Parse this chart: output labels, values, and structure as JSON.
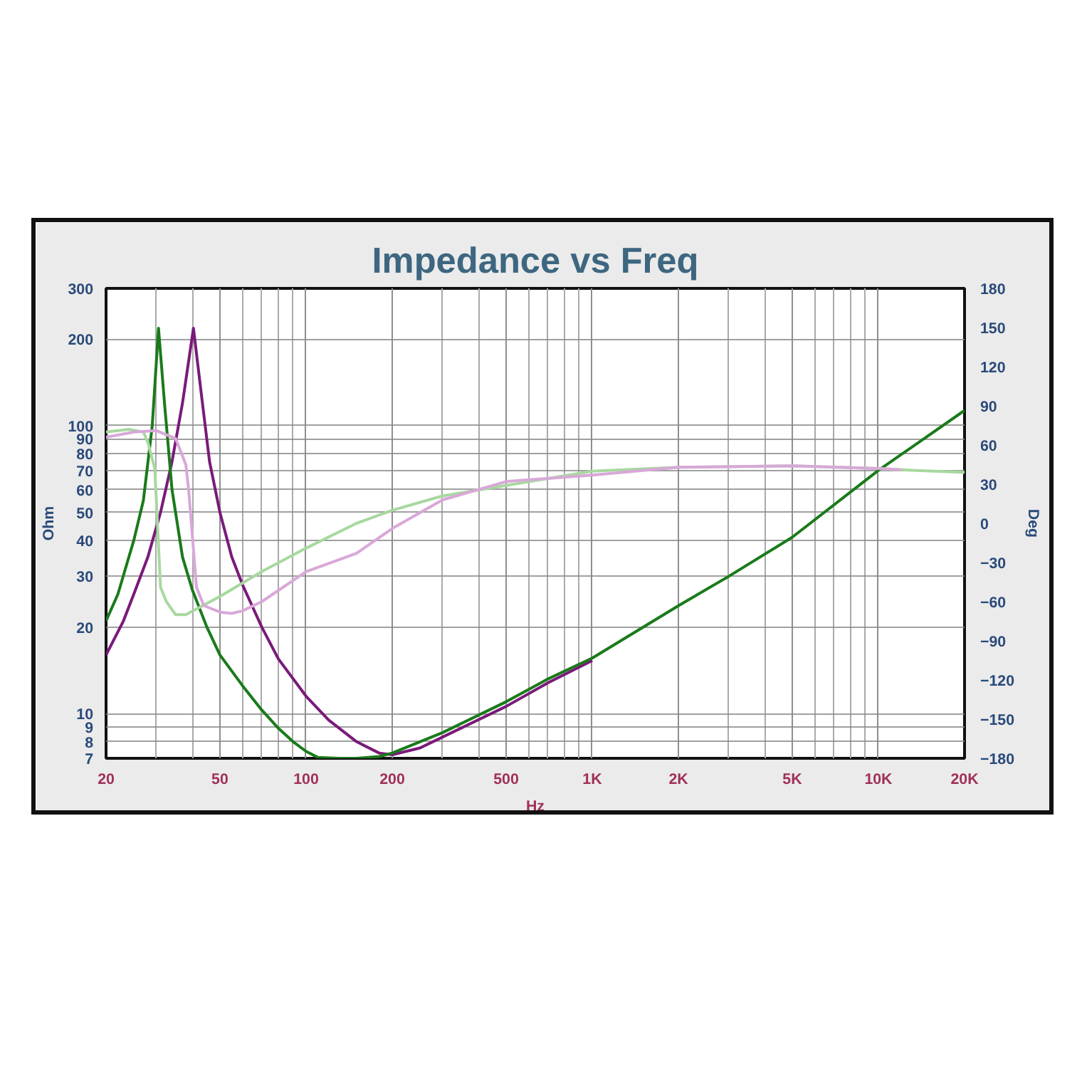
{
  "chart_data": {
    "type": "line",
    "title": "Impedance vs Freq",
    "xlabel": "Hz",
    "ylabel": "Ohm",
    "y2label": "Deg",
    "log": "xy",
    "grid": true,
    "marker": "none",
    "line_style": "solid",
    "xlim": [
      20,
      20000
    ],
    "xticks": [
      20,
      50,
      100,
      200,
      500,
      {
        "value": 1000,
        "label": "1K"
      },
      {
        "value": 2000,
        "label": "2K"
      },
      {
        "value": 5000,
        "label": "5K"
      },
      {
        "value": 10000,
        "label": "10K"
      },
      {
        "value": 20000,
        "label": "20K"
      }
    ],
    "ylim": [
      7,
      300
    ],
    "yticks": [
      7,
      8,
      9,
      10,
      20,
      30,
      40,
      50,
      60,
      70,
      80,
      90,
      100,
      200,
      300
    ],
    "y2lim": [
      -180,
      180
    ],
    "y2ticks": [
      -180,
      -150,
      -120,
      -90,
      -60,
      -30,
      0,
      30,
      60,
      90,
      120,
      150,
      180
    ],
    "series": [
      {
        "color": "#7a1a7a",
        "x": [
          20,
          23,
          25,
          28,
          31,
          34,
          37,
          40.4,
          43,
          46,
          50,
          55,
          60,
          70,
          80,
          100,
          120,
          150,
          180,
          200,
          250,
          300,
          500,
          700,
          1000
        ],
        "values": [
          16,
          21,
          26,
          35,
          50,
          75,
          120,
          218,
          130,
          75,
          50,
          35,
          28,
          20,
          15.5,
          11.5,
          9.5,
          8,
          7.3,
          7.2,
          7.6,
          8.3,
          10.6,
          12.8,
          15.3
        ]
      },
      {
        "color": "#1a7a1a",
        "x": [
          20,
          22,
          25,
          27,
          29,
          30.5,
          32,
          34,
          37,
          40,
          45,
          50,
          60,
          70,
          80,
          90,
          100,
          110,
          130,
          150,
          180,
          200,
          300,
          500,
          700,
          1000,
          2000,
          3000,
          5000,
          10000,
          20000
        ],
        "values": [
          21,
          26,
          40,
          55,
          100,
          218,
          120,
          60,
          35,
          27,
          20,
          16,
          12.5,
          10.3,
          8.9,
          8,
          7.4,
          7.05,
          7,
          7,
          7.1,
          7.3,
          8.6,
          11,
          13.2,
          15.6,
          23.7,
          30,
          41,
          70,
          113
        ]
      },
      {
        "color": "#a8d8a0",
        "axis": "y2",
        "x": [
          20,
          24,
          27,
          28,
          29.6,
          31,
          32.5,
          35,
          38,
          50,
          70,
          100,
          150,
          200,
          300,
          500,
          1000,
          2000,
          5000,
          10000,
          12000,
          20000
        ],
        "values": [
          70,
          72,
          70,
          62,
          42,
          -49,
          -60,
          -70,
          -70,
          -56,
          -37,
          -19,
          0,
          10,
          21,
          29,
          40,
          43,
          44,
          42,
          41,
          39
        ]
      },
      {
        "color": "#d8a8d8",
        "axis": "y2",
        "x": [
          20,
          25,
          30,
          35,
          38,
          38.9,
          41.4,
          43.9,
          50,
          55,
          60,
          70,
          100,
          150,
          200,
          300,
          500,
          1000,
          2000,
          5000,
          10000,
          12000
        ],
        "values": [
          66,
          70,
          71,
          65,
          45,
          25,
          -49,
          -63,
          -68,
          -69,
          -67,
          -60,
          -37,
          -23,
          -4,
          18,
          32,
          37,
          43,
          44,
          42,
          41
        ]
      }
    ]
  }
}
